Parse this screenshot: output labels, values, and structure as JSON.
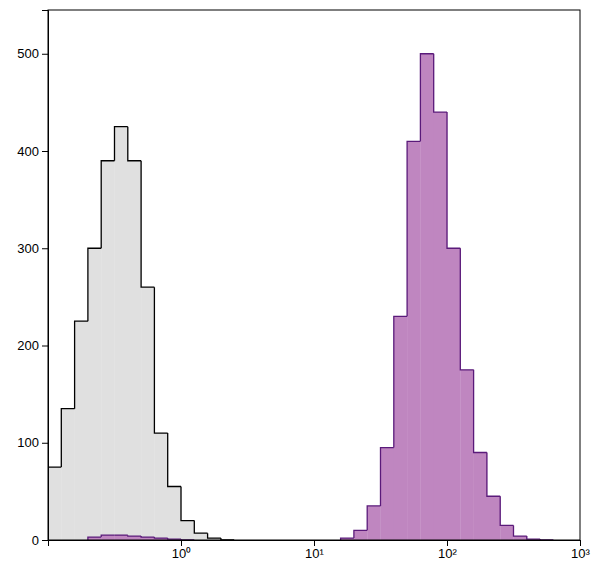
{
  "chart_data": {
    "type": "histogram",
    "log": "x",
    "bins": [
      0.1,
      0.1259,
      0.1585,
      0.1995,
      0.2512,
      0.3162,
      0.3981,
      0.5012,
      0.631,
      0.7943,
      1,
      1.259,
      1.585,
      1.995,
      2.512,
      3.162,
      3.981,
      5.012,
      6.31,
      7.943,
      10,
      12.59,
      15.85,
      19.95,
      25.12,
      31.62,
      39.81,
      50.12,
      63.1,
      79.43,
      100,
      125.9,
      158.5,
      199.5,
      251.2,
      316.2,
      398.1,
      501.2,
      631,
      794.3,
      1000
    ],
    "series": [
      {
        "color": "#e0e0e0",
        "values": [
          75,
          135,
          225,
          300,
          390,
          425,
          390,
          260,
          110,
          55,
          20,
          7,
          2,
          0,
          0,
          0,
          0,
          0,
          0,
          0,
          0,
          0,
          0,
          0,
          0,
          0,
          0,
          0,
          0,
          0,
          0,
          0,
          0,
          0,
          0,
          0,
          0,
          0,
          0,
          0
        ]
      },
      {
        "color": "#bf86c0",
        "values": [
          0,
          0,
          0,
          3,
          5,
          5,
          4,
          3,
          2,
          1,
          0,
          0,
          0,
          0,
          0,
          0,
          0,
          0,
          0,
          0,
          0,
          0,
          2,
          10,
          35,
          95,
          230,
          410,
          500,
          440,
          300,
          175,
          90,
          45,
          15,
          4,
          1,
          0,
          0,
          0
        ]
      }
    ],
    "xlim": [
      0.1,
      1000
    ],
    "xticks": [
      {
        "value": 1,
        "label": "10⁰"
      },
      {
        "value": 10,
        "label": "10¹"
      },
      {
        "value": 100,
        "label": "10²"
      },
      {
        "value": 1000,
        "label": "10³"
      }
    ],
    "ylim": [
      0,
      545
    ],
    "yticks": [
      0,
      100,
      200,
      300,
      400,
      500
    ]
  }
}
